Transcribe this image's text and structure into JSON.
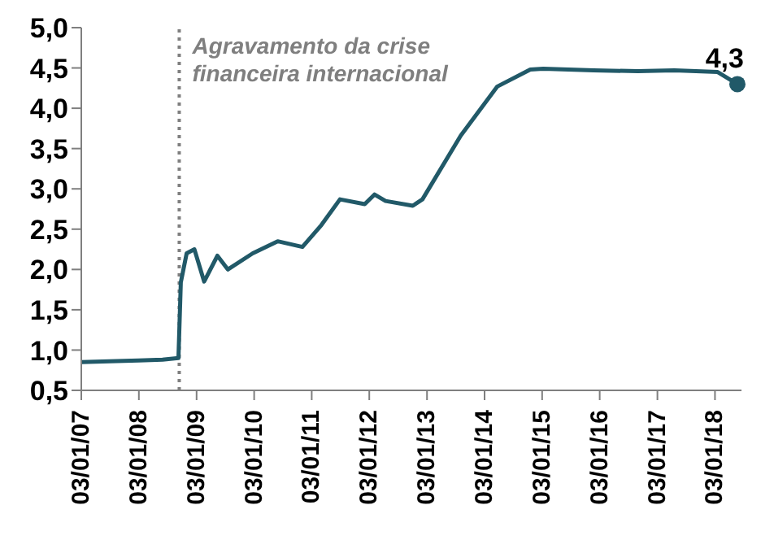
{
  "chart_data": {
    "type": "line",
    "x": [
      "2007-01-03",
      "2007-07-01",
      "2008-01-01",
      "2008-06-01",
      "2008-09-10",
      "2008-09-25",
      "2008-11-01",
      "2008-12-20",
      "2009-02-20",
      "2009-05-15",
      "2009-07-20",
      "2009-12-25",
      "2010-06-01",
      "2010-11-05",
      "2011-03-05",
      "2011-07-01",
      "2011-12-05",
      "2012-02-05",
      "2012-04-15",
      "2012-10-05",
      "2012-12-05",
      "2013-08-05",
      "2014-03-25",
      "2014-10-20",
      "2015-01-10",
      "2015-11-25",
      "2016-09-01",
      "2017-04-20",
      "2018-01-20",
      "2018-05-25"
    ],
    "series": [
      {
        "color": "#215968",
        "values": [
          0.85,
          0.86,
          0.87,
          0.88,
          0.9,
          1.84,
          2.2,
          2.25,
          1.85,
          2.17,
          2.0,
          2.2,
          2.35,
          2.28,
          2.55,
          2.87,
          2.81,
          2.93,
          2.85,
          2.79,
          2.87,
          3.66,
          4.27,
          4.48,
          4.49,
          4.47,
          4.46,
          4.47,
          4.45,
          4.3
        ],
        "value_labels": [
          null,
          null,
          null,
          null,
          null,
          null,
          null,
          null,
          null,
          null,
          null,
          null,
          null,
          null,
          null,
          null,
          null,
          null,
          null,
          null,
          null,
          null,
          null,
          null,
          null,
          null,
          null,
          null,
          null,
          "4,3"
        ]
      }
    ],
    "xlim": [
      "2007-01-03",
      "2018-06-20"
    ],
    "xticks": [
      {
        "value": "2007-01-03",
        "label": "03/01/07"
      },
      {
        "value": "2008-01-03",
        "label": "03/01/08"
      },
      {
        "value": "2009-01-03",
        "label": "03/01/09"
      },
      {
        "value": "2010-01-03",
        "label": "03/01/10"
      },
      {
        "value": "2011-01-03",
        "label": "03/01/11"
      },
      {
        "value": "2012-01-03",
        "label": "03/01/12"
      },
      {
        "value": "2013-01-03",
        "label": "03/01/13"
      },
      {
        "value": "2014-01-03",
        "label": "03/01/14"
      },
      {
        "value": "2015-01-03",
        "label": "03/01/15"
      },
      {
        "value": "2016-01-03",
        "label": "03/01/16"
      },
      {
        "value": "2017-01-03",
        "label": "03/01/17"
      },
      {
        "value": "2018-01-03",
        "label": "03/01/18"
      }
    ],
    "ylim": [
      0.5,
      5.0
    ],
    "yticks": [
      {
        "value": 0.5,
        "label": "0,5"
      },
      {
        "value": 1.0,
        "label": "1,0"
      },
      {
        "value": 1.5,
        "label": "1,5"
      },
      {
        "value": 2.0,
        "label": "2,0"
      },
      {
        "value": 2.5,
        "label": "2,5"
      },
      {
        "value": 3.0,
        "label": "3,0"
      },
      {
        "value": 3.5,
        "label": "3,5"
      },
      {
        "value": 4.0,
        "label": "4,0"
      },
      {
        "value": 4.5,
        "label": "4,5"
      },
      {
        "value": 5.0,
        "label": "5,0"
      }
    ],
    "ref_lines": [
      {
        "axis": "x",
        "value": "2008-09-15",
        "label": "Agravamento da crise financeira internacional",
        "color": "#7f7f7f",
        "line_style": "dotted"
      }
    ],
    "grid": false,
    "legend": false,
    "marker": "none",
    "line_style": "solid"
  }
}
